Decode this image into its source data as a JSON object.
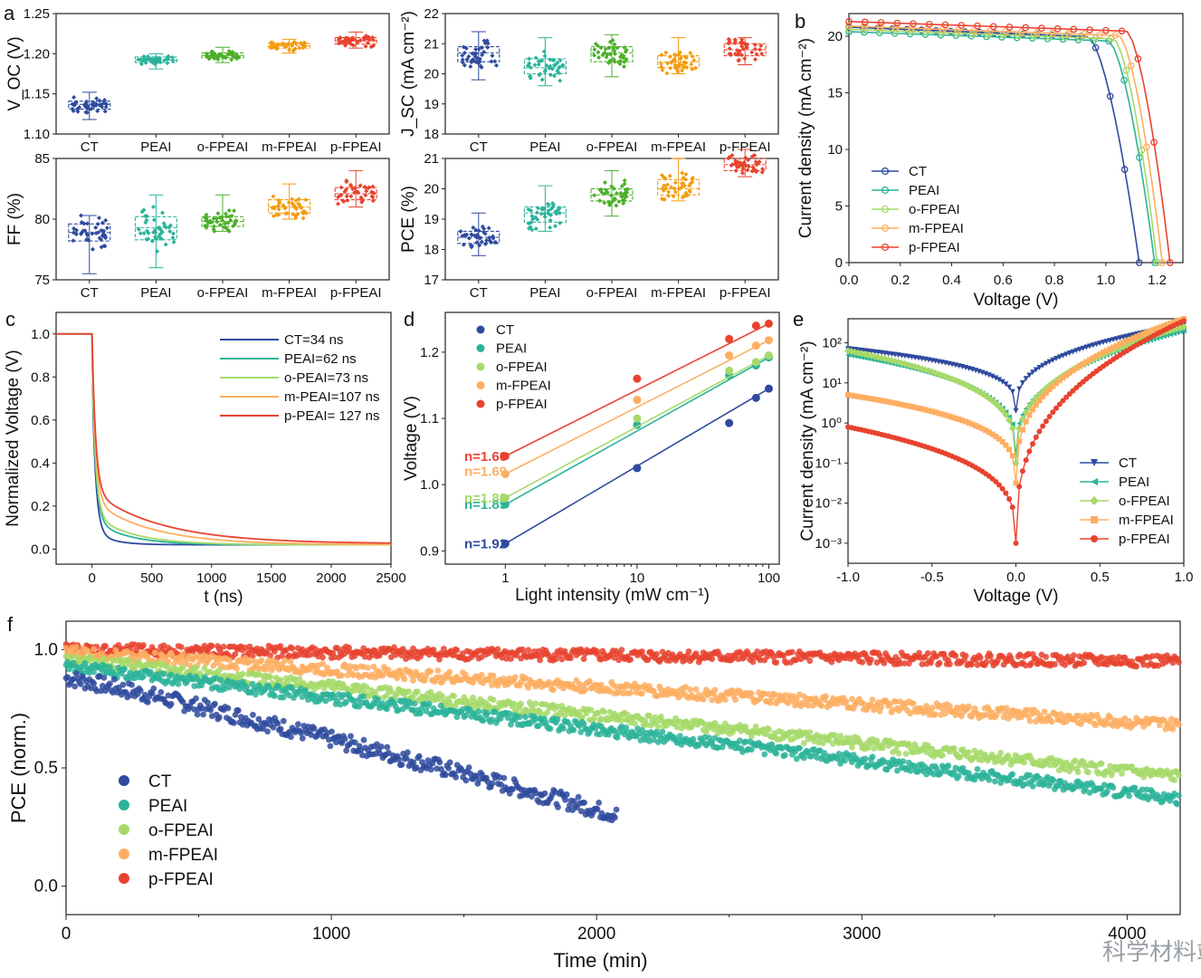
{
  "colors": {
    "CT": "#2f4a9e",
    "PEAI": "#2bb39a",
    "oFPEAI": "#a6d96a",
    "mFPEAI": "#fdae61",
    "pFPEAI": "#e8432f",
    "oFPEAI_box": "#4caf2a",
    "mFPEAI_box": "#f39c12"
  },
  "watermark": "科学材料站",
  "chart_data": [
    {
      "id": "a1",
      "panel": "a",
      "type": "box",
      "title": "",
      "ylabel": "V_OC (V)",
      "ylim": [
        1.1,
        1.25
      ],
      "yticks": [
        "1.10",
        "1.15",
        "1.20",
        "1.25"
      ],
      "categories": [
        "CT",
        "PEAI",
        "o-FPEAI",
        "m-FPEAI",
        "p-FPEAI"
      ],
      "values": [
        {
          "q1": 1.131,
          "median": 1.137,
          "q3": 1.141,
          "min": 1.118,
          "max": 1.152
        },
        {
          "q1": 1.189,
          "median": 1.192,
          "q3": 1.196,
          "min": 1.181,
          "max": 1.2
        },
        {
          "q1": 1.195,
          "median": 1.198,
          "q3": 1.201,
          "min": 1.189,
          "max": 1.208
        },
        {
          "q1": 1.207,
          "median": 1.21,
          "q3": 1.213,
          "min": 1.201,
          "max": 1.218
        },
        {
          "q1": 1.212,
          "median": 1.216,
          "q3": 1.22,
          "min": 1.207,
          "max": 1.227
        }
      ]
    },
    {
      "id": "a2",
      "panel": "",
      "type": "box",
      "ylabel": "J_SC (mA cm⁻²)",
      "ylim": [
        18,
        22
      ],
      "yticks": [
        "18",
        "19",
        "20",
        "21",
        "22"
      ],
      "categories": [
        "CT",
        "PEAI",
        "o-FPEAI",
        "m-FPEAI",
        "p-FPEAI"
      ],
      "values": [
        {
          "q1": 20.4,
          "median": 20.7,
          "q3": 20.9,
          "min": 19.8,
          "max": 21.4
        },
        {
          "q1": 20.0,
          "median": 20.2,
          "q3": 20.5,
          "min": 19.6,
          "max": 21.2
        },
        {
          "q1": 20.4,
          "median": 20.7,
          "q3": 20.9,
          "min": 19.9,
          "max": 21.3
        },
        {
          "q1": 20.2,
          "median": 20.4,
          "q3": 20.6,
          "min": 20.0,
          "max": 21.2
        },
        {
          "q1": 20.6,
          "median": 20.8,
          "q3": 21.0,
          "min": 20.3,
          "max": 21.2
        }
      ]
    },
    {
      "id": "a3",
      "panel": "",
      "type": "box",
      "ylabel": "FF (%)",
      "ylim": [
        75,
        85
      ],
      "yticks": [
        "75",
        "80",
        "85"
      ],
      "categories": [
        "CT",
        "PEAI",
        "o-FPEAI",
        "m-FPEAI",
        "p-FPEAI"
      ],
      "values": [
        {
          "q1": 78.2,
          "median": 78.9,
          "q3": 79.6,
          "min": 75.5,
          "max": 80.3
        },
        {
          "q1": 78.3,
          "median": 79.3,
          "q3": 80.2,
          "min": 76.0,
          "max": 82.0
        },
        {
          "q1": 79.4,
          "median": 79.8,
          "q3": 80.2,
          "min": 79.0,
          "max": 82.0
        },
        {
          "q1": 80.5,
          "median": 81.0,
          "q3": 81.6,
          "min": 80.0,
          "max": 82.9
        },
        {
          "q1": 81.6,
          "median": 82.1,
          "q3": 82.6,
          "min": 81.0,
          "max": 84.0
        }
      ]
    },
    {
      "id": "a4",
      "panel": "",
      "type": "box",
      "ylabel": "PCE (%)",
      "ylim": [
        17,
        21
      ],
      "yticks": [
        "17",
        "18",
        "19",
        "20",
        "21"
      ],
      "categories": [
        "CT",
        "PEAI",
        "o-FPEAI",
        "m-FPEAI",
        "p-FPEAI"
      ],
      "values": [
        {
          "q1": 18.2,
          "median": 18.4,
          "q3": 18.6,
          "min": 17.8,
          "max": 19.2
        },
        {
          "q1": 18.9,
          "median": 19.2,
          "q3": 19.4,
          "min": 18.6,
          "max": 20.1
        },
        {
          "q1": 19.6,
          "median": 19.8,
          "q3": 20.0,
          "min": 19.1,
          "max": 20.6
        },
        {
          "q1": 19.8,
          "median": 20.0,
          "q3": 20.3,
          "min": 19.6,
          "max": 21.0
        },
        {
          "q1": 20.6,
          "median": 20.8,
          "q3": 21.0,
          "min": 20.4,
          "max": 21.3
        }
      ]
    },
    {
      "id": "b",
      "panel": "b",
      "type": "line",
      "xlabel": "Voltage (V)",
      "ylabel": "Current density (mA cm⁻²)",
      "xlim": [
        0.0,
        1.3
      ],
      "ylim": [
        0,
        22
      ],
      "xticks": [
        "0.0",
        "0.2",
        "0.4",
        "0.6",
        "0.8",
        "1.0",
        "1.2"
      ],
      "yticks": [
        "0",
        "5",
        "10",
        "15",
        "20"
      ],
      "series": [
        {
          "name": "CT",
          "key": "CT",
          "jsc": 20.8,
          "voc": 1.13,
          "knee": 0.93
        },
        {
          "name": "PEAI",
          "key": "PEAI",
          "jsc": 20.4,
          "voc": 1.19,
          "knee": 1.01
        },
        {
          "name": "o-FPEAI",
          "key": "oFPEAI",
          "jsc": 20.6,
          "voc": 1.2,
          "knee": 1.03
        },
        {
          "name": "m-FPEAI",
          "key": "mFPEAI",
          "jsc": 20.9,
          "voc": 1.22,
          "knee": 1.05
        },
        {
          "name": "p-FPEAI",
          "key": "pFPEAI",
          "jsc": 21.3,
          "voc": 1.25,
          "knee": 1.08
        }
      ]
    },
    {
      "id": "c",
      "panel": "c",
      "type": "line",
      "xlabel": "t (ns)",
      "ylabel": "Normalized Voltage (V)",
      "xlim": [
        -300,
        2500
      ],
      "ylim": [
        -0.07,
        1.1
      ],
      "xticks": [
        "0",
        "500",
        "1000",
        "1500",
        "2000",
        "2500"
      ],
      "yticks": [
        "0.0",
        "0.2",
        "0.4",
        "0.6",
        "0.8",
        "1.0"
      ],
      "series": [
        {
          "name": "CT=34 ns",
          "key": "CT",
          "tau": 34,
          "floor": 0.02
        },
        {
          "name": "PEAI=62 ns",
          "key": "PEAI",
          "tau": 62,
          "floor": 0.02
        },
        {
          "name": "o-PEAI=73 ns",
          "key": "oFPEAI",
          "tau": 73,
          "floor": 0.02
        },
        {
          "name": "m-PEAI=107 ns",
          "key": "mFPEAI",
          "tau": 107,
          "floor": 0.02
        },
        {
          "name": "p-PEAI= 127 ns",
          "key": "pFPEAI",
          "tau": 127,
          "floor": 0.025
        }
      ]
    },
    {
      "id": "d",
      "panel": "d",
      "type": "scatter",
      "xlabel": "Light intensity (mW cm⁻¹)",
      "ylabel": "Voltage (V)",
      "xscale": "log",
      "xlim": [
        0.35,
        120
      ],
      "ylim": [
        0.88,
        1.26
      ],
      "xticks": [
        "1",
        "10",
        "100"
      ],
      "yticks": [
        "0.9",
        "1.0",
        "1.1",
        "1.2"
      ],
      "series": [
        {
          "name": "CT",
          "key": "CT",
          "n_label": "n=1.92",
          "x": [
            1,
            10,
            50,
            80,
            100
          ],
          "y": [
            0.911,
            1.025,
            1.093,
            1.131,
            1.145
          ]
        },
        {
          "name": "PEAI",
          "key": "PEAI",
          "n_label": "n=1.85",
          "x": [
            1,
            10,
            50,
            80,
            100
          ],
          "y": [
            0.97,
            1.09,
            1.165,
            1.18,
            1.192
          ]
        },
        {
          "name": "o-FPEAI",
          "key": "oFPEAI",
          "n_label": "n=1.80",
          "x": [
            1,
            10,
            50,
            80,
            100
          ],
          "y": [
            0.98,
            1.1,
            1.172,
            1.185,
            1.195
          ]
        },
        {
          "name": "m-FPEAI",
          "key": "mFPEAI",
          "n_label": "n=1.69",
          "x": [
            1,
            10,
            50,
            80,
            100
          ],
          "y": [
            1.016,
            1.128,
            1.195,
            1.21,
            1.218
          ]
        },
        {
          "name": "p-FPEAI",
          "key": "pFPEAI",
          "n_label": "n=1.66",
          "x": [
            1,
            10,
            50,
            80,
            100
          ],
          "y": [
            1.043,
            1.16,
            1.22,
            1.24,
            1.243
          ]
        }
      ]
    },
    {
      "id": "e",
      "panel": "e",
      "type": "line",
      "xlabel": "Voltage (V)",
      "ylabel": "Current density (mA cm⁻²)",
      "yscale": "log",
      "xlim": [
        -1.0,
        1.0
      ],
      "ylim": [
        -3.5,
        2.6
      ],
      "xticks": [
        "-1.0",
        "-0.5",
        "0.0",
        "0.5",
        "1.0"
      ],
      "yticks": [
        "10²",
        "10¹",
        "10⁰",
        "10⁻¹",
        "10⁻²",
        "10⁻³"
      ],
      "series": [
        {
          "name": "CT",
          "key": "CT",
          "marker": "triangle",
          "y_rev": 1.85,
          "y_min": 0.3,
          "y_fwd": 2.45
        },
        {
          "name": "PEAI",
          "key": "PEAI",
          "marker": "tri-left",
          "y_rev": 1.7,
          "y_min": -0.8,
          "y_fwd": 2.3
        },
        {
          "name": "o-FPEAI",
          "key": "oFPEAI",
          "marker": "diamond",
          "y_rev": 1.8,
          "y_min": -1.0,
          "y_fwd": 2.4
        },
        {
          "name": "m-FPEAI",
          "key": "mFPEAI",
          "marker": "square",
          "y_rev": 0.7,
          "y_min": -1.5,
          "y_fwd": 2.6
        },
        {
          "name": "p-FPEAI",
          "key": "pFPEAI",
          "marker": "circle",
          "y_rev": -0.1,
          "y_min": -3.0,
          "y_fwd": 2.55
        }
      ]
    },
    {
      "id": "f",
      "panel": "f",
      "type": "scatter",
      "xlabel": "Time (min)",
      "ylabel": "PCE (norm.)",
      "xlim": [
        0,
        4200
      ],
      "ylim": [
        -0.12,
        1.12
      ],
      "xticks": [
        "0",
        "1000",
        "2000",
        "3000",
        "4000"
      ],
      "yticks": [
        "0.0",
        "0.5",
        "1.0"
      ],
      "series": [
        {
          "name": "CT",
          "key": "CT",
          "x_end": 2080,
          "y_start": 0.88,
          "y_end": 0.3
        },
        {
          "name": "PEAI",
          "key": "PEAI",
          "x_end": 4200,
          "y_start": 0.93,
          "y_end": 0.37
        },
        {
          "name": "o-FPEAI",
          "key": "oFPEAI",
          "x_end": 4200,
          "y_start": 0.96,
          "y_end": 0.46
        },
        {
          "name": "m-FPEAI",
          "key": "mFPEAI",
          "x_end": 4200,
          "y_start": 0.99,
          "y_end": 0.68
        },
        {
          "name": "p-FPEAI",
          "key": "pFPEAI",
          "x_end": 4200,
          "y_start": 1.0,
          "y_end": 0.95
        }
      ]
    }
  ]
}
